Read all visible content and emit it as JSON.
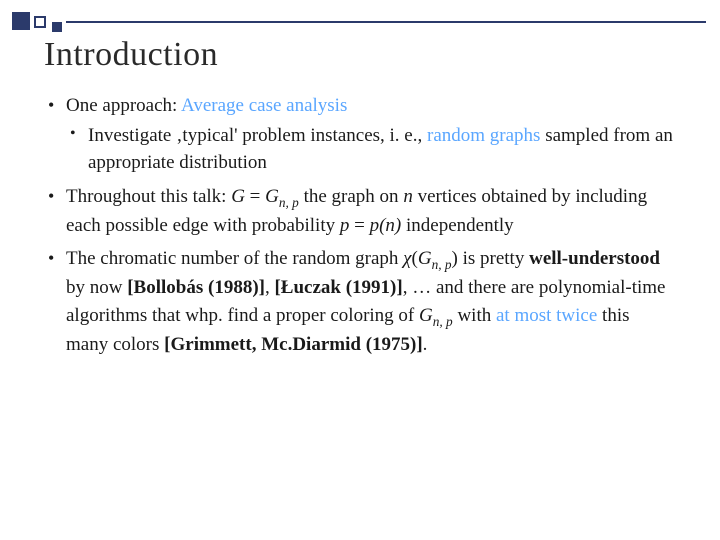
{
  "colors": {
    "accent_blue": "#5aa6ff",
    "decoration_blue": "#2b3a6b",
    "text": "#1a1a1a",
    "background": "#ffffff"
  },
  "typography": {
    "title_fontsize": 34,
    "body_fontsize": 19,
    "font_family": "Georgia, Times New Roman, serif"
  },
  "title": "Introduction",
  "bullets": {
    "b1_lead": "One approach: ",
    "b1_accent": "Average case analysis",
    "b1_sub_pre": "Investigate ‚typical' problem instances, i. e., ",
    "b1_sub_accent": "random graphs",
    "b1_sub_post": " sampled from an appropriate distribution",
    "b2_pre": "Throughout this talk: ",
    "b2_math1_G": "G",
    "b2_math1_eq": " = ",
    "b2_math1_Gnp": "G",
    "b2_math1_sub": "n, p",
    "b2_mid1": " the graph on ",
    "b2_math_n": "n",
    "b2_mid2": " vertices obtained by including each possible edge with probability ",
    "b2_math_p": "p",
    "b2_math_peq": " = ",
    "b2_math_pn": "p(n)",
    "b2_post": " independently",
    "b3_pre": "The chromatic number of the random graph ",
    "b3_chi": "χ",
    "b3_paren_open": "(",
    "b3_Gnp2_G": "G",
    "b3_Gnp2_sub": "n, p",
    "b3_paren_close": ")",
    "b3_mid1": " is pretty ",
    "b3_well": "well-understood",
    "b3_mid2": " by now ",
    "b3_ref1": "[Bollobás (1988)]",
    "b3_comma": ", ",
    "b3_ref2": "[Łuczak (1991)]",
    "b3_mid3": ", … and there are polynomial-time algorithms that whp. find a proper coloring of ",
    "b3_Gnp3_G": "G",
    "b3_Gnp3_sub": "n, p",
    "b3_mid4": " with ",
    "b3_twice": "at most twice",
    "b3_mid5": " this many colors ",
    "b3_ref3": "[Grimmett, Mc.Diarmid (1975)]",
    "b3_end": "."
  }
}
